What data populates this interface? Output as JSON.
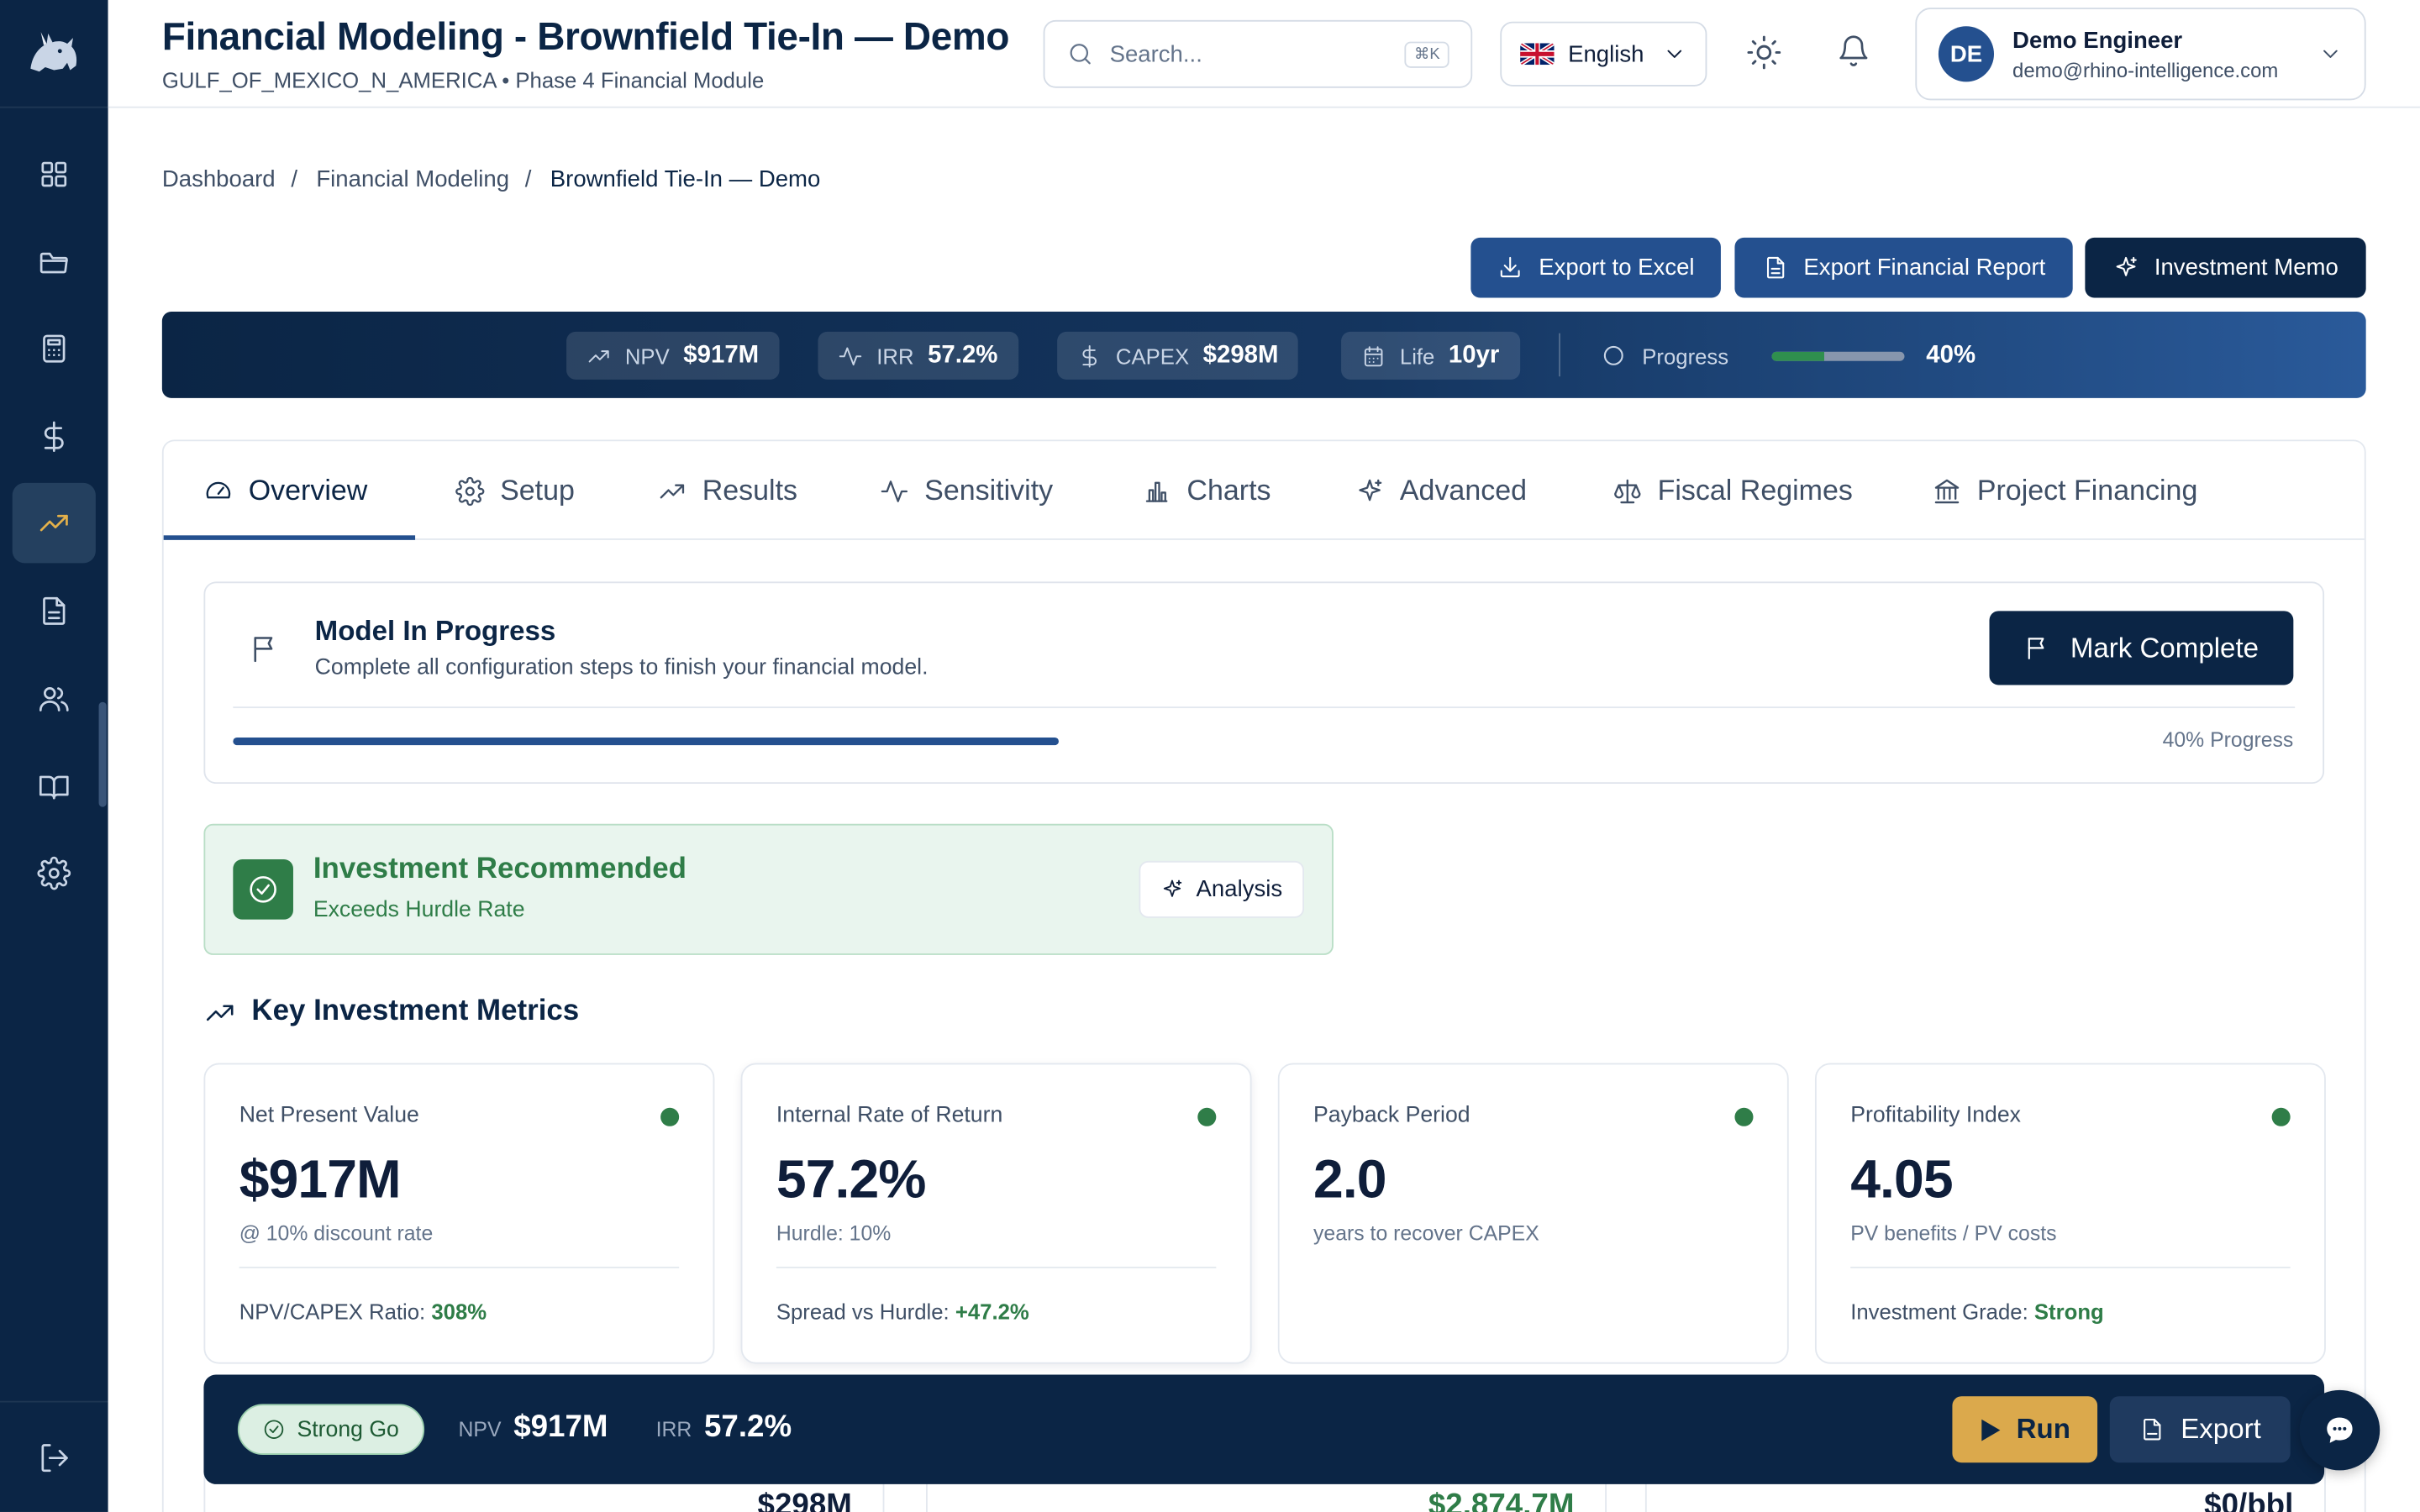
{
  "header": {
    "title": "Financial Modeling - Brownfield Tie-In — Demo",
    "subtitle": "GULF_OF_MEXICO_N_AMERICA • Phase 4 Financial Module",
    "search_placeholder": "Search...",
    "search_shortcut": "⌘K",
    "language": "English",
    "user": {
      "initials": "DE",
      "name": "Demo Engineer",
      "email": "demo@rhino-intelligence.com"
    }
  },
  "sidebar": {
    "items": [
      {
        "icon": "grid-icon"
      },
      {
        "icon": "folder-icon"
      },
      {
        "icon": "calculator-icon"
      },
      {
        "icon": "dollar-icon"
      },
      {
        "icon": "trending-up-icon",
        "active": true
      },
      {
        "icon": "document-icon"
      },
      {
        "icon": "users-icon"
      },
      {
        "icon": "book-icon"
      },
      {
        "icon": "gear-icon"
      }
    ],
    "logout_icon": "logout-icon"
  },
  "breadcrumb": [
    "Dashboard",
    "Financial Modeling",
    "Brownfield Tie-In — Demo"
  ],
  "actions": {
    "export_excel": "Export to Excel",
    "export_report": "Export Financial Report",
    "investment_memo": "Investment Memo"
  },
  "kpi_bar": {
    "npv_label": "NPV",
    "npv": "$917M",
    "irr_label": "IRR",
    "irr": "57.2%",
    "capex_label": "CAPEX",
    "capex": "$298M",
    "life_label": "Life",
    "life": "10yr",
    "progress_label": "Progress",
    "progress": "40%",
    "progress_fraction": 0.4
  },
  "tabs": [
    "Overview",
    "Setup",
    "Results",
    "Sensitivity",
    "Charts",
    "Advanced",
    "Fiscal Regimes",
    "Project Financing"
  ],
  "active_tab": "Overview",
  "model_status": {
    "title": "Model In Progress",
    "subtitle": "Complete all configuration steps to finish your financial model.",
    "mark_complete": "Mark Complete",
    "progress_text": "40% Progress",
    "progress_fraction": 0.4
  },
  "recommendation": {
    "title": "Investment Recommended",
    "subtitle": "Exceeds Hurdle Rate",
    "analysis_button": "Analysis"
  },
  "metrics_heading": "Key Investment Metrics",
  "metrics": [
    {
      "label": "Net Present Value",
      "value": "$917M",
      "note": "@ 10% discount rate",
      "footer_label": "NPV/CAPEX Ratio:",
      "footer_value": "308%"
    },
    {
      "label": "Internal Rate of Return",
      "value": "57.2%",
      "note": "Hurdle: 10%",
      "footer_label": "Spread vs Hurdle:",
      "footer_value": "+47.2%"
    },
    {
      "label": "Payback Period",
      "value": "2.0",
      "note": "years to recover CAPEX",
      "footer_label": "",
      "footer_value": ""
    },
    {
      "label": "Profitability Index",
      "value": "4.05",
      "note": "PV benefits / PV costs",
      "footer_label": "Investment Grade:",
      "footer_value": "Strong"
    }
  ],
  "status_color": "#2f7d48",
  "sticky_bar": {
    "badge": "Strong Go",
    "npv_label": "NPV",
    "npv": "$917M",
    "irr_label": "IRR",
    "irr": "57.2%",
    "run": "Run",
    "export": "Export"
  },
  "below_fold": {
    "row1_value": "$298M",
    "row2_value": "$2,874.7M",
    "row3_value": "$0/bbl"
  }
}
